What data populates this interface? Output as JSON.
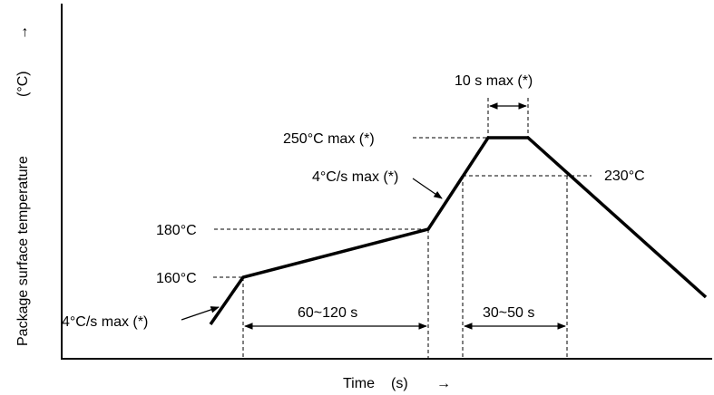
{
  "axes": {
    "y_label": "Package surface temperature",
    "y_unit": "(°C)",
    "y_arrow": "→",
    "x_label": "Time",
    "x_unit": "(s)",
    "x_arrow": "→"
  },
  "profile": {
    "points": [
      {
        "label": "ramp start"
      },
      {
        "label": "160°C"
      },
      {
        "label": "180°C"
      },
      {
        "label": "peak start"
      },
      {
        "label": "peak end"
      },
      {
        "label": "end"
      }
    ]
  },
  "annotations": {
    "ramp_rate_low": "4°C/s max (*)",
    "temp_160": "160°C",
    "temp_180": "180°C",
    "preheat_duration": "60~120 s",
    "ramp_rate_high": "4°C/s max (*)",
    "temp_peak": "250°C max (*)",
    "peak_duration": "10 s max (*)",
    "temp_230": "230°C",
    "above_230_duration": "30~50 s"
  }
}
